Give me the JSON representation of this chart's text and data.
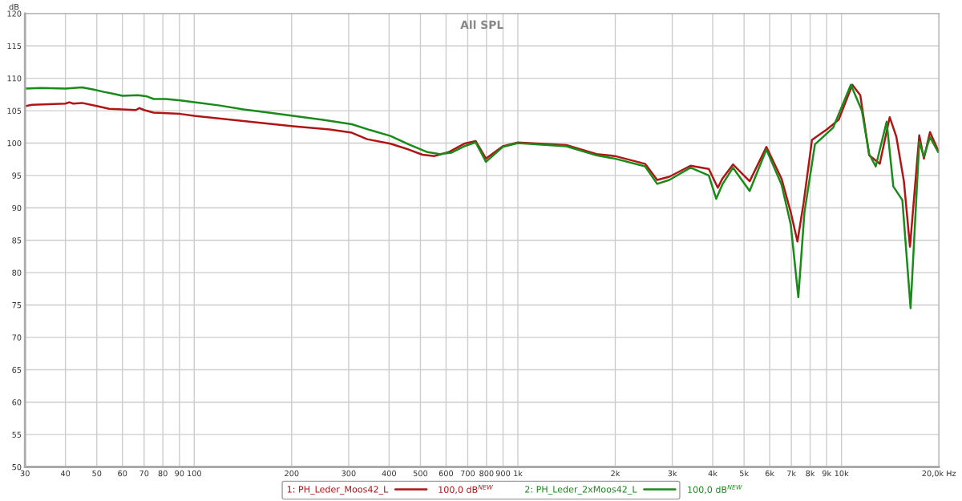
{
  "chart_data": {
    "type": "line",
    "title": "All SPL",
    "ylabel": "dB",
    "xlim": [
      30,
      20000
    ],
    "ylim": [
      50,
      120
    ],
    "log": "x",
    "grid": true,
    "legend": "bottom",
    "marker": "none",
    "line_style": "solid",
    "xticks": [
      30,
      40,
      50,
      60,
      70,
      80,
      90,
      100,
      200,
      300,
      400,
      500,
      600,
      700,
      800,
      900,
      {
        "value": 1000,
        "label": "1k"
      },
      {
        "value": 2000,
        "label": "2k"
      },
      {
        "value": 3000,
        "label": "3k"
      },
      {
        "value": 4000,
        "label": "4k"
      },
      {
        "value": 5000,
        "label": "5k"
      },
      {
        "value": 6000,
        "label": "6k"
      },
      {
        "value": 7000,
        "label": "7k"
      },
      {
        "value": 8000,
        "label": "8k"
      },
      {
        "value": 9000,
        "label": "9k"
      },
      {
        "value": 10000,
        "label": "10k"
      },
      {
        "value": 20000,
        "label": "20,0k Hz"
      }
    ],
    "yticks": [
      50,
      55,
      60,
      65,
      70,
      75,
      80,
      85,
      90,
      95,
      100,
      105,
      110,
      115,
      120
    ],
    "annotations": [
      "100,0 dB$^{NEW}$",
      "100,0 dB$^{NEW}$"
    ],
    "series": [
      {
        "name": "1: PH_Leder_Moos42_L",
        "color": "#b01515",
        "x": [
          30,
          31.5,
          40,
          41.1,
          42.3,
          45,
          50.3,
          54.6,
          60,
          66,
          67.7,
          70,
          74.9,
          90.6,
          100,
          142,
          202,
          262,
          307,
          342,
          404,
          460,
          507,
          553,
          611,
          682,
          741,
          797,
          898,
          1000,
          1412,
          1751,
          1993,
          2472,
          2695,
          2937,
          3415,
          3891,
          4148,
          4284,
          4621,
          5203,
          5861,
          6528,
          6971,
          7310,
          7634,
          8108,
          9008,
          9804,
          10800,
          11430,
          12180,
          13130,
          14090,
          14770,
          15590,
          16280,
          17390,
          17970,
          18770,
          19910
        ],
        "values": [
          105.7,
          105.9,
          106.1,
          106.3,
          106.1,
          106.2,
          105.7,
          105.3,
          105.2,
          105.1,
          105.4,
          105.1,
          104.7,
          104.5,
          104.2,
          103.4,
          102.6,
          102.1,
          101.6,
          100.6,
          99.9,
          99.0,
          98.2,
          98.0,
          98.6,
          99.9,
          100.3,
          97.6,
          99.5,
          100.1,
          99.7,
          98.3,
          98.0,
          96.8,
          94.3,
          94.8,
          96.5,
          96.0,
          93.1,
          94.5,
          96.7,
          94.1,
          99.4,
          94.5,
          89.3,
          84.8,
          90.7,
          100.5,
          102.1,
          103.6,
          109.0,
          107.4,
          98.1,
          96.8,
          104.0,
          101.0,
          94.1,
          84.0,
          101.2,
          97.6,
          101.7,
          98.8
        ]
      },
      {
        "name": "2: PH_Leder_2xMoos42_L",
        "color": "#1a8a1a",
        "x": [
          30,
          33.6,
          40,
          45,
          48.6,
          52.6,
          56.3,
          60,
          67,
          71.5,
          74.9,
          81.7,
          90.6,
          100,
          120,
          142,
          170,
          202,
          250,
          307,
          350,
          404,
          460,
          526,
          574,
          622,
          682,
          741,
          797,
          898,
          1000,
          1412,
          1751,
          1993,
          2472,
          2695,
          2937,
          3415,
          3891,
          4100,
          4284,
          4621,
          5203,
          5861,
          6528,
          6971,
          7356,
          7682,
          8280,
          9430,
          10690,
          11560,
          12180,
          12760,
          13790,
          14460,
          15420,
          16350,
          17390,
          17970,
          18770,
          19910
        ],
        "values": [
          108.4,
          108.5,
          108.4,
          108.6,
          108.3,
          107.9,
          107.6,
          107.3,
          107.4,
          107.2,
          106.8,
          106.8,
          106.6,
          106.3,
          105.8,
          105.2,
          104.7,
          104.2,
          103.6,
          102.9,
          102.0,
          101.1,
          99.8,
          98.6,
          98.3,
          98.5,
          99.5,
          100.1,
          97.1,
          99.4,
          100.0,
          99.5,
          98.1,
          97.6,
          96.4,
          93.7,
          94.3,
          96.2,
          95.0,
          91.4,
          93.6,
          96.2,
          92.6,
          99.0,
          93.6,
          87.4,
          76.2,
          89.3,
          99.8,
          102.4,
          109.0,
          105.0,
          98.3,
          96.4,
          103.3,
          93.3,
          91.2,
          74.5,
          100.2,
          97.9,
          100.9,
          98.6
        ]
      }
    ]
  }
}
